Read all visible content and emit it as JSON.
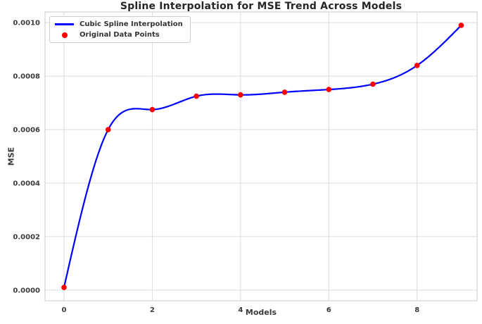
{
  "chart_data": {
    "type": "line",
    "title": "Spline Interpolation for MSE Trend Across Models",
    "xlabel": "Models",
    "ylabel": "MSE",
    "x": [
      0,
      1,
      2,
      3,
      4,
      5,
      6,
      7,
      8,
      9
    ],
    "y": [
      1e-05,
      0.0006,
      0.000675,
      0.000725,
      0.00073,
      0.00074,
      0.00075,
      0.00077,
      0.00084,
      0.00099
    ],
    "series": [
      {
        "name": "Cubic Spline Interpolation",
        "kind": "spline-line",
        "color": "#0000ff"
      },
      {
        "name": "Original Data Points",
        "kind": "scatter",
        "color": "#ff0000"
      }
    ],
    "xticks": [
      "0",
      "2",
      "4",
      "6",
      "8"
    ],
    "xtick_values": [
      0,
      2,
      4,
      6,
      8
    ],
    "yticks": [
      "0.0000",
      "0.0002",
      "0.0004",
      "0.0006",
      "0.0008",
      "0.0010"
    ],
    "ytick_values": [
      0,
      0.0002,
      0.0004,
      0.0006,
      0.0008,
      0.001
    ],
    "xlim": [
      -0.43,
      9.36
    ],
    "ylim": [
      -4e-05,
      0.00104
    ],
    "grid": true,
    "legend_position": "upper left",
    "colors": {
      "grid": "#dcdcdc",
      "spine": "#c9c9c9",
      "tick_text": "#3a3a3a",
      "title_text": "#262626",
      "background": "#ffffff"
    }
  }
}
